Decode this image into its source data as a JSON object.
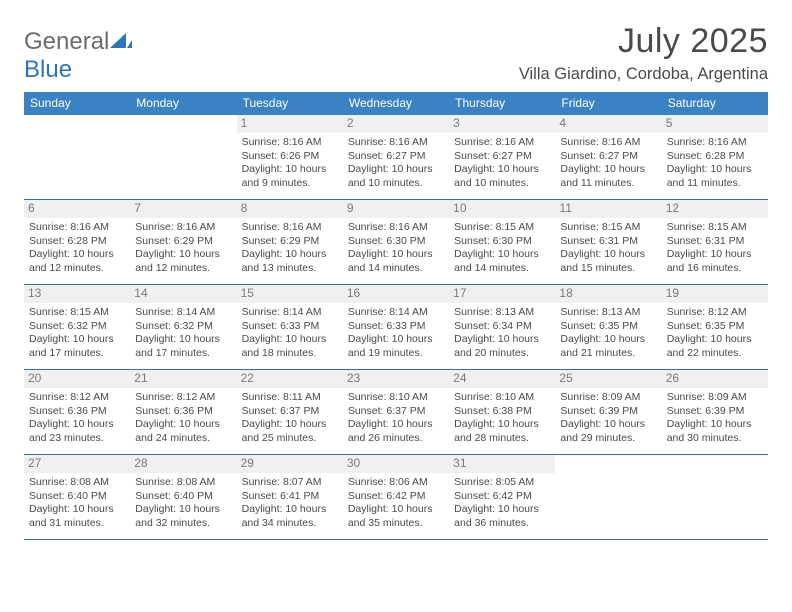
{
  "brand": {
    "word1": "General",
    "word2": "Blue"
  },
  "header": {
    "month_title": "July 2025",
    "location": "Villa Giardino, Cordoba, Argentina"
  },
  "colors": {
    "header_bg": "#3b82c4",
    "header_text": "#ffffff",
    "rule": "#3b6fa3",
    "daynum_bg": "#eef0f2"
  },
  "weekdays": [
    "Sunday",
    "Monday",
    "Tuesday",
    "Wednesday",
    "Thursday",
    "Friday",
    "Saturday"
  ],
  "weeks": [
    [
      {
        "n": "",
        "empty": true
      },
      {
        "n": "",
        "empty": true
      },
      {
        "n": "1",
        "sr": "Sunrise: 8:16 AM",
        "ss": "Sunset: 6:26 PM",
        "d1": "Daylight: 10 hours",
        "d2": "and 9 minutes."
      },
      {
        "n": "2",
        "sr": "Sunrise: 8:16 AM",
        "ss": "Sunset: 6:27 PM",
        "d1": "Daylight: 10 hours",
        "d2": "and 10 minutes."
      },
      {
        "n": "3",
        "sr": "Sunrise: 8:16 AM",
        "ss": "Sunset: 6:27 PM",
        "d1": "Daylight: 10 hours",
        "d2": "and 10 minutes."
      },
      {
        "n": "4",
        "sr": "Sunrise: 8:16 AM",
        "ss": "Sunset: 6:27 PM",
        "d1": "Daylight: 10 hours",
        "d2": "and 11 minutes."
      },
      {
        "n": "5",
        "sr": "Sunrise: 8:16 AM",
        "ss": "Sunset: 6:28 PM",
        "d1": "Daylight: 10 hours",
        "d2": "and 11 minutes."
      }
    ],
    [
      {
        "n": "6",
        "sr": "Sunrise: 8:16 AM",
        "ss": "Sunset: 6:28 PM",
        "d1": "Daylight: 10 hours",
        "d2": "and 12 minutes."
      },
      {
        "n": "7",
        "sr": "Sunrise: 8:16 AM",
        "ss": "Sunset: 6:29 PM",
        "d1": "Daylight: 10 hours",
        "d2": "and 12 minutes."
      },
      {
        "n": "8",
        "sr": "Sunrise: 8:16 AM",
        "ss": "Sunset: 6:29 PM",
        "d1": "Daylight: 10 hours",
        "d2": "and 13 minutes."
      },
      {
        "n": "9",
        "sr": "Sunrise: 8:16 AM",
        "ss": "Sunset: 6:30 PM",
        "d1": "Daylight: 10 hours",
        "d2": "and 14 minutes."
      },
      {
        "n": "10",
        "sr": "Sunrise: 8:15 AM",
        "ss": "Sunset: 6:30 PM",
        "d1": "Daylight: 10 hours",
        "d2": "and 14 minutes."
      },
      {
        "n": "11",
        "sr": "Sunrise: 8:15 AM",
        "ss": "Sunset: 6:31 PM",
        "d1": "Daylight: 10 hours",
        "d2": "and 15 minutes."
      },
      {
        "n": "12",
        "sr": "Sunrise: 8:15 AM",
        "ss": "Sunset: 6:31 PM",
        "d1": "Daylight: 10 hours",
        "d2": "and 16 minutes."
      }
    ],
    [
      {
        "n": "13",
        "sr": "Sunrise: 8:15 AM",
        "ss": "Sunset: 6:32 PM",
        "d1": "Daylight: 10 hours",
        "d2": "and 17 minutes."
      },
      {
        "n": "14",
        "sr": "Sunrise: 8:14 AM",
        "ss": "Sunset: 6:32 PM",
        "d1": "Daylight: 10 hours",
        "d2": "and 17 minutes."
      },
      {
        "n": "15",
        "sr": "Sunrise: 8:14 AM",
        "ss": "Sunset: 6:33 PM",
        "d1": "Daylight: 10 hours",
        "d2": "and 18 minutes."
      },
      {
        "n": "16",
        "sr": "Sunrise: 8:14 AM",
        "ss": "Sunset: 6:33 PM",
        "d1": "Daylight: 10 hours",
        "d2": "and 19 minutes."
      },
      {
        "n": "17",
        "sr": "Sunrise: 8:13 AM",
        "ss": "Sunset: 6:34 PM",
        "d1": "Daylight: 10 hours",
        "d2": "and 20 minutes."
      },
      {
        "n": "18",
        "sr": "Sunrise: 8:13 AM",
        "ss": "Sunset: 6:35 PM",
        "d1": "Daylight: 10 hours",
        "d2": "and 21 minutes."
      },
      {
        "n": "19",
        "sr": "Sunrise: 8:12 AM",
        "ss": "Sunset: 6:35 PM",
        "d1": "Daylight: 10 hours",
        "d2": "and 22 minutes."
      }
    ],
    [
      {
        "n": "20",
        "sr": "Sunrise: 8:12 AM",
        "ss": "Sunset: 6:36 PM",
        "d1": "Daylight: 10 hours",
        "d2": "and 23 minutes."
      },
      {
        "n": "21",
        "sr": "Sunrise: 8:12 AM",
        "ss": "Sunset: 6:36 PM",
        "d1": "Daylight: 10 hours",
        "d2": "and 24 minutes."
      },
      {
        "n": "22",
        "sr": "Sunrise: 8:11 AM",
        "ss": "Sunset: 6:37 PM",
        "d1": "Daylight: 10 hours",
        "d2": "and 25 minutes."
      },
      {
        "n": "23",
        "sr": "Sunrise: 8:10 AM",
        "ss": "Sunset: 6:37 PM",
        "d1": "Daylight: 10 hours",
        "d2": "and 26 minutes."
      },
      {
        "n": "24",
        "sr": "Sunrise: 8:10 AM",
        "ss": "Sunset: 6:38 PM",
        "d1": "Daylight: 10 hours",
        "d2": "and 28 minutes."
      },
      {
        "n": "25",
        "sr": "Sunrise: 8:09 AM",
        "ss": "Sunset: 6:39 PM",
        "d1": "Daylight: 10 hours",
        "d2": "and 29 minutes."
      },
      {
        "n": "26",
        "sr": "Sunrise: 8:09 AM",
        "ss": "Sunset: 6:39 PM",
        "d1": "Daylight: 10 hours",
        "d2": "and 30 minutes."
      }
    ],
    [
      {
        "n": "27",
        "sr": "Sunrise: 8:08 AM",
        "ss": "Sunset: 6:40 PM",
        "d1": "Daylight: 10 hours",
        "d2": "and 31 minutes."
      },
      {
        "n": "28",
        "sr": "Sunrise: 8:08 AM",
        "ss": "Sunset: 6:40 PM",
        "d1": "Daylight: 10 hours",
        "d2": "and 32 minutes."
      },
      {
        "n": "29",
        "sr": "Sunrise: 8:07 AM",
        "ss": "Sunset: 6:41 PM",
        "d1": "Daylight: 10 hours",
        "d2": "and 34 minutes."
      },
      {
        "n": "30",
        "sr": "Sunrise: 8:06 AM",
        "ss": "Sunset: 6:42 PM",
        "d1": "Daylight: 10 hours",
        "d2": "and 35 minutes."
      },
      {
        "n": "31",
        "sr": "Sunrise: 8:05 AM",
        "ss": "Sunset: 6:42 PM",
        "d1": "Daylight: 10 hours",
        "d2": "and 36 minutes."
      },
      {
        "n": "",
        "empty": true
      },
      {
        "n": "",
        "empty": true
      }
    ]
  ]
}
